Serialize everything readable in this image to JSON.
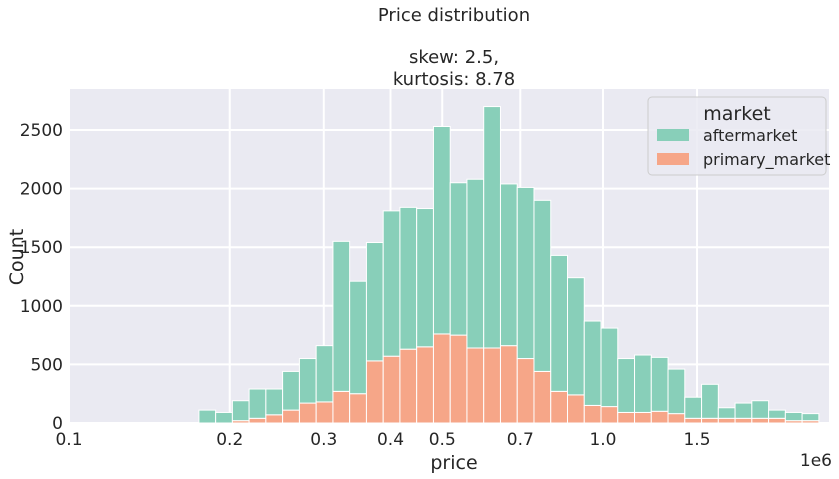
{
  "chart_data": {
    "type": "bar",
    "subtype": "stacked-histogram",
    "title": "Price distribution",
    "subtitle_lines": [
      "skew: 2.5,",
      "kurtosis: 8.78"
    ],
    "xlabel": "price",
    "ylabel": "Count",
    "x_offset_label": "1e6",
    "x_scale": "log",
    "xlim": [
      0.1,
      2.65
    ],
    "ylim": [
      0,
      2850
    ],
    "x_ticks": [
      {
        "value": 0.1,
        "label": "0.1"
      },
      {
        "value": 0.2,
        "label": "0.2"
      },
      {
        "value": 0.3,
        "label": "0.3"
      },
      {
        "value": 0.4,
        "label": "0.4"
      },
      {
        "value": 0.5,
        "label": "0.5"
      },
      {
        "value": 0.7,
        "label": "0.7"
      },
      {
        "value": 1.0,
        "label": "1.0"
      },
      {
        "value": 1.5,
        "label": "1.5"
      }
    ],
    "y_ticks": [
      {
        "value": 0,
        "label": "0"
      },
      {
        "value": 500,
        "label": "500"
      },
      {
        "value": 1000,
        "label": "1000"
      },
      {
        "value": 1500,
        "label": "1500"
      },
      {
        "value": 2000,
        "label": "2000"
      },
      {
        "value": 2500,
        "label": "2500"
      }
    ],
    "grid": true,
    "background": "#eaeaf2",
    "legend": {
      "title": "market",
      "placement": "top-right"
    },
    "bin_edges": [
      0.1751,
      0.1882,
      0.2023,
      0.2174,
      0.2337,
      0.2512,
      0.2701,
      0.2903,
      0.3121,
      0.3354,
      0.3606,
      0.3876,
      0.4166,
      0.4478,
      0.4814,
      0.5175,
      0.5562,
      0.5979,
      0.6427,
      0.6909,
      0.7426,
      0.7983,
      0.8581,
      0.9224,
      0.9915,
      1.0658,
      1.1457,
      1.2315,
      1.3238,
      1.423,
      1.5297,
      1.6443,
      1.7675,
      1.9,
      2.0424,
      2.1954,
      2.3599,
      2.5368
    ],
    "series": [
      {
        "name": "aftermarket",
        "color": "#88cfb9",
        "values": [
          110,
          90,
          170,
          250,
          220,
          330,
          380,
          480,
          1280,
          960,
          1010,
          1240,
          1210,
          1180,
          1770,
          1300,
          1440,
          2060,
          1380,
          1460,
          1460,
          1160,
          1000,
          720,
          670,
          460,
          490,
          460,
          380,
          180,
          290,
          90,
          130,
          150,
          70,
          70,
          60
        ]
      },
      {
        "name": "primary_market",
        "color": "#f6a688",
        "values": [
          0,
          0,
          20,
          40,
          70,
          110,
          170,
          180,
          270,
          250,
          530,
          570,
          630,
          650,
          760,
          750,
          640,
          640,
          660,
          550,
          440,
          270,
          240,
          150,
          140,
          90,
          90,
          100,
          80,
          40,
          40,
          40,
          40,
          40,
          40,
          20,
          20
        ]
      }
    ]
  }
}
